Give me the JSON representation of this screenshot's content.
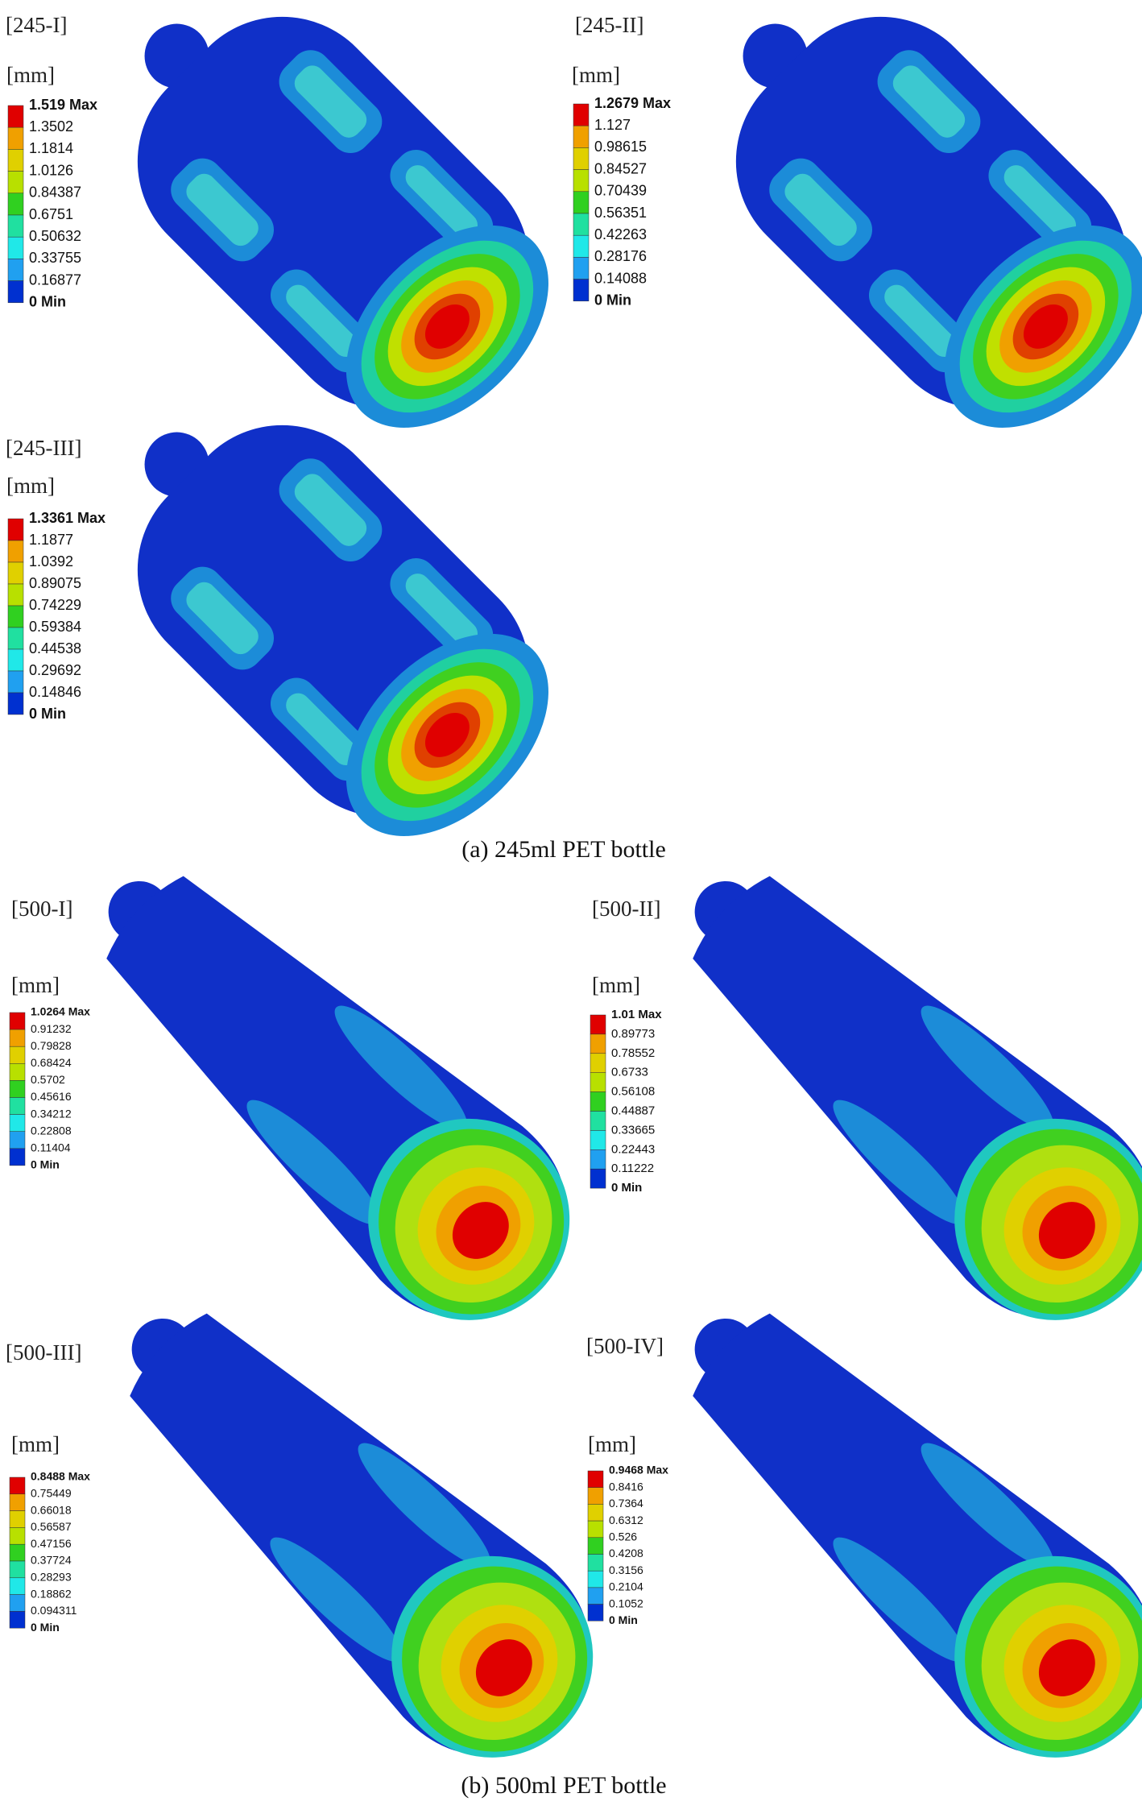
{
  "figure": {
    "groups": [
      {
        "caption": "(a) 245ml PET bottle",
        "panels": [
          {
            "label": "[245-I]",
            "unit": "[mm]",
            "legend": [
              "1.519 Max",
              "1.3502",
              "1.1814",
              "1.0126",
              "0.84387",
              "0.6751",
              "0.50632",
              "0.33755",
              "0.16877",
              "0 Min"
            ]
          },
          {
            "label": "[245-II]",
            "unit": "[mm]",
            "legend": [
              "1.2679 Max",
              "1.127",
              "0.98615",
              "0.84527",
              "0.70439",
              "0.56351",
              "0.42263",
              "0.28176",
              "0.14088",
              "0 Min"
            ]
          },
          {
            "label": "[245-III]",
            "unit": "[mm]",
            "legend": [
              "1.3361 Max",
              "1.1877",
              "1.0392",
              "0.89075",
              "0.74229",
              "0.59384",
              "0.44538",
              "0.29692",
              "0.14846",
              "0 Min"
            ]
          }
        ]
      },
      {
        "caption": "(b) 500ml PET bottle",
        "panels": [
          {
            "label": "[500-I]",
            "unit": "[mm]",
            "legend": [
              "1.0264 Max",
              "0.91232",
              "0.79828",
              "0.68424",
              "0.5702",
              "0.45616",
              "0.34212",
              "0.22808",
              "0.11404",
              "0 Min"
            ]
          },
          {
            "label": "[500-II]",
            "unit": "[mm]",
            "legend": [
              "1.01 Max",
              "0.89773",
              "0.78552",
              "0.6733",
              "0.56108",
              "0.44887",
              "0.33665",
              "0.22443",
              "0.11222",
              "0 Min"
            ]
          },
          {
            "label": "[500-III]",
            "unit": "[mm]",
            "legend": [
              "0.8488 Max",
              "0.75449",
              "0.66018",
              "0.56587",
              "0.47156",
              "0.37724",
              "0.28293",
              "0.18862",
              "0.094311",
              "0 Min"
            ]
          },
          {
            "label": "[500-IV]",
            "unit": "[mm]",
            "legend": [
              "0.9468 Max",
              "0.8416",
              "0.7364",
              "0.6312",
              "0.526",
              "0.4208",
              "0.3156",
              "0.2104",
              "0.1052",
              "0 Min"
            ]
          }
        ]
      }
    ]
  }
}
